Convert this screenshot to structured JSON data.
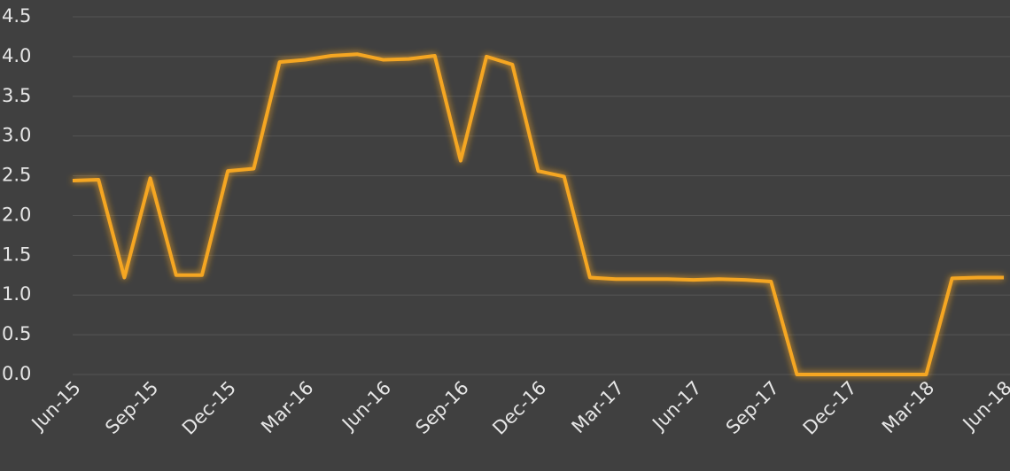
{
  "chart_data": {
    "type": "line",
    "categories": [
      "Jun-15",
      null,
      null,
      "Sep-15",
      null,
      null,
      "Dec-15",
      null,
      null,
      "Mar-16",
      null,
      null,
      "Jun-16",
      null,
      null,
      "Sep-16",
      null,
      null,
      "Dec-16",
      null,
      null,
      "Mar-17",
      null,
      null,
      "Jun-17",
      null,
      null,
      "Sep-17",
      null,
      null,
      "Dec-17",
      null,
      null,
      "Mar-18",
      null,
      null,
      "Jun-18"
    ],
    "values": [
      2.44,
      2.45,
      1.22,
      2.47,
      1.25,
      1.25,
      2.56,
      2.59,
      3.93,
      3.96,
      4.01,
      4.03,
      3.96,
      3.97,
      4.01,
      2.69,
      4.0,
      3.9,
      2.56,
      2.49,
      1.22,
      1.2,
      1.2,
      1.2,
      1.19,
      1.2,
      1.19,
      1.17,
      0,
      0,
      0,
      0,
      0,
      0,
      1.21,
      1.22,
      1.22
    ],
    "color": "#f5a623",
    "ylim": [
      0,
      4.5
    ],
    "yticks": [
      {
        "value": 0,
        "label": "0.0"
      },
      0.5,
      {
        "value": 1,
        "label": "1.0"
      },
      1.5,
      {
        "value": 2,
        "label": "2.0"
      },
      2.5,
      {
        "value": 3,
        "label": "3.0"
      },
      3.5,
      {
        "value": 4,
        "label": "4.0"
      },
      4.5
    ],
    "grid": true
  }
}
